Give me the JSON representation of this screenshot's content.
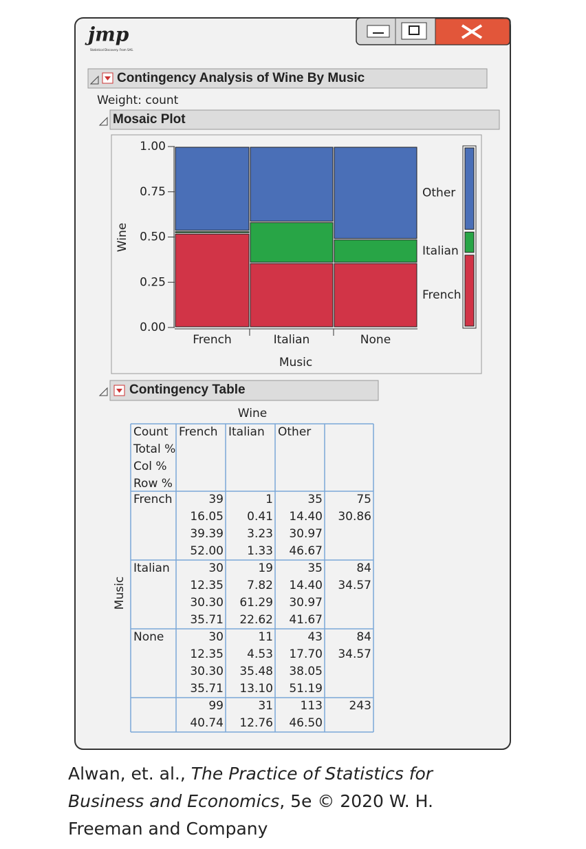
{
  "logo": {
    "text": "jmp",
    "sub": "Statistical Discovery. From SAS."
  },
  "report": {
    "title": "Contingency Analysis of Wine By Music",
    "weight": "Weight: count"
  },
  "mosaic": {
    "title": "Mosaic Plot",
    "y_label": "Wine",
    "x_label": "Music",
    "ylim": [
      0,
      1
    ],
    "yticks": [
      {
        "value": 0,
        "label": "0.00"
      },
      {
        "value": 0.25,
        "label": "0.25"
      },
      {
        "value": 0.5,
        "label": "0.50"
      },
      {
        "value": 0.75,
        "label": "0.75"
      },
      {
        "value": 1,
        "label": "1.00"
      }
    ],
    "colors": [
      "#d13447",
      "#28a546",
      "#4a6fb7"
    ]
  },
  "table": {
    "title": "Contingency Table",
    "col_header": "Wine",
    "row_header": "Music",
    "stats": [
      "Count",
      "Total %",
      "Col %",
      "Row %"
    ],
    "columns": [
      "French",
      "Italian",
      "Other"
    ],
    "rows": [
      {
        "label": "French",
        "cells": [
          [
            "39",
            "16.05",
            "39.39",
            "52.00"
          ],
          [
            "1",
            "0.41",
            "3.23",
            "1.33"
          ],
          [
            "35",
            "14.40",
            "30.97",
            "46.67"
          ]
        ],
        "total": [
          "75",
          "30.86"
        ]
      },
      {
        "label": "Italian",
        "cells": [
          [
            "30",
            "12.35",
            "30.30",
            "35.71"
          ],
          [
            "19",
            "7.82",
            "61.29",
            "22.62"
          ],
          [
            "35",
            "14.40",
            "30.97",
            "41.67"
          ]
        ],
        "total": [
          "84",
          "34.57"
        ]
      },
      {
        "label": "None",
        "cells": [
          [
            "30",
            "12.35",
            "30.30",
            "35.71"
          ],
          [
            "11",
            "4.53",
            "35.48",
            "13.10"
          ],
          [
            "43",
            "17.70",
            "38.05",
            "51.19"
          ]
        ],
        "total": [
          "84",
          "34.57"
        ]
      }
    ],
    "totals": [
      [
        "99",
        "40.74"
      ],
      [
        "31",
        "12.76"
      ],
      [
        "113",
        "46.50"
      ]
    ],
    "grand_total": "243"
  },
  "caption": [
    "Alwan, et. al., ",
    "The Practice of Statistics for Business and Economics",
    ", 5e © 2020 W. H. Freeman and Company"
  ]
}
